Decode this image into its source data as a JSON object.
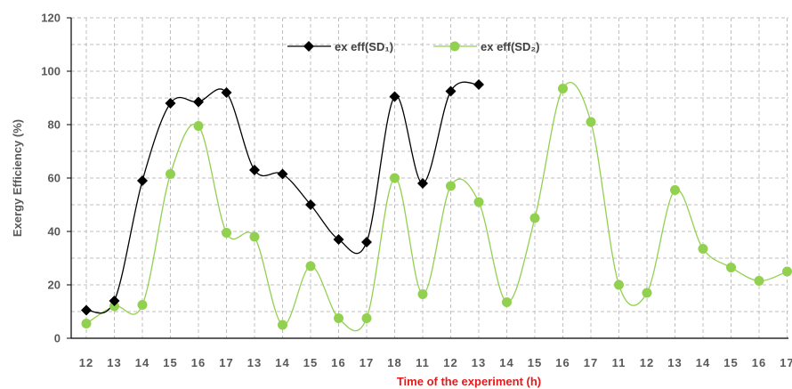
{
  "chart_data": {
    "type": "line",
    "title": "",
    "xlabel": "Time of the experiment (h)",
    "ylabel": "Exergy Efficiency (%)",
    "ylim": [
      0,
      120
    ],
    "yticks": [
      0,
      20,
      40,
      60,
      80,
      100,
      120
    ],
    "grid": "dashed",
    "legend_position": "top-center",
    "categories": [
      "12",
      "13",
      "14",
      "15",
      "16",
      "17",
      "13",
      "14",
      "15",
      "16",
      "17",
      "18",
      "11",
      "12",
      "13",
      "14",
      "15",
      "16",
      "17",
      "11",
      "12",
      "13",
      "14",
      "15",
      "16",
      "17"
    ],
    "series": [
      {
        "name": "ex eff(SD₁)",
        "color": "#000000",
        "marker": "diamond",
        "values": [
          10.5,
          14,
          59,
          88,
          88.5,
          92,
          63,
          61.5,
          50,
          37,
          36,
          90.5,
          58,
          92.5,
          95,
          null,
          null,
          null,
          null,
          null,
          null,
          null,
          null,
          null,
          null,
          null
        ]
      },
      {
        "name": "ex eff(SD₂)",
        "color": "#92d050",
        "marker": "circle",
        "values": [
          5.5,
          12,
          12.5,
          61.5,
          79.5,
          39.5,
          38,
          5,
          27,
          7.5,
          7.5,
          60,
          16.5,
          57,
          51,
          13.5,
          45,
          93.5,
          81,
          20,
          17,
          55.5,
          33.5,
          26.5,
          21.5,
          25
        ]
      }
    ]
  }
}
